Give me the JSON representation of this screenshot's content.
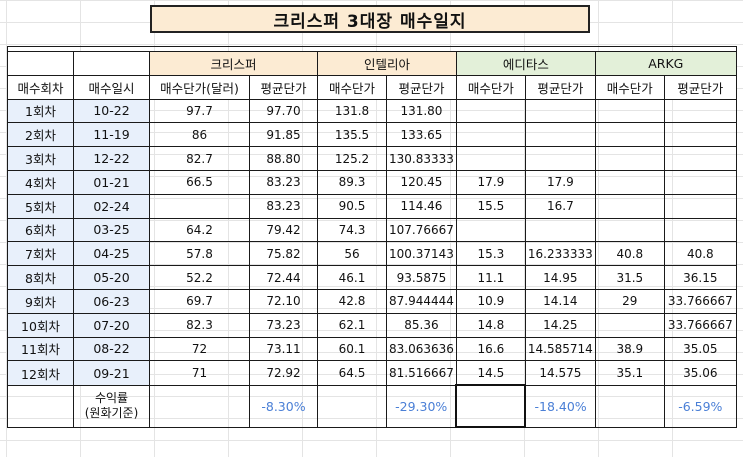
{
  "title": "크리스퍼 3대장 매수일지",
  "groups": [
    "크리스퍼",
    "인텔리아",
    "에디타스",
    "ARKG"
  ],
  "columns": [
    "매수회차",
    "매수일시",
    "매수단가(달러)",
    "평균단가",
    "매수단가",
    "평균단가",
    "매수단가",
    "평균단가",
    "매수단가",
    "평균단가"
  ],
  "rows": [
    [
      "1회차",
      "10-22",
      "97.7",
      "97.70",
      "131.8",
      "131.80",
      "",
      "",
      "",
      ""
    ],
    [
      "2회차",
      "11-19",
      "86",
      "91.85",
      "135.5",
      "133.65",
      "",
      "",
      "",
      ""
    ],
    [
      "3회차",
      "12-22",
      "82.7",
      "88.80",
      "125.2",
      "130.83333",
      "",
      "",
      "",
      ""
    ],
    [
      "4회차",
      "01-21",
      "66.5",
      "83.23",
      "89.3",
      "120.45",
      "17.9",
      "17.9",
      "",
      ""
    ],
    [
      "5회차",
      "02-24",
      "",
      "83.23",
      "90.5",
      "114.46",
      "15.5",
      "16.7",
      "",
      ""
    ],
    [
      "6회차",
      "03-25",
      "64.2",
      "79.42",
      "74.3",
      "107.76667",
      "",
      "",
      "",
      ""
    ],
    [
      "7회차",
      "04-25",
      "57.8",
      "75.82",
      "56",
      "100.37143",
      "15.3",
      "16.233333",
      "40.8",
      "40.8"
    ],
    [
      "8회차",
      "05-20",
      "52.2",
      "72.44",
      "46.1",
      "93.5875",
      "11.1",
      "14.95",
      "31.5",
      "36.15"
    ],
    [
      "9회차",
      "06-23",
      "69.7",
      "72.10",
      "42.8",
      "87.944444",
      "10.9",
      "14.14",
      "29",
      "33.766667"
    ],
    [
      "10회차",
      "07-20",
      "82.3",
      "73.23",
      "62.1",
      "85.36",
      "14.8",
      "14.25",
      "",
      "33.766667"
    ],
    [
      "11회차",
      "08-22",
      "72",
      "73.11",
      "60.1",
      "83.063636",
      "16.6",
      "14.585714",
      "38.9",
      "35.05"
    ],
    [
      "12회차",
      "09-21",
      "71",
      "72.92",
      "64.5",
      "81.516667",
      "14.5",
      "14.575",
      "35.1",
      "35.06"
    ]
  ],
  "returns_label_line1": "수익률",
  "returns_label_line2": "(원화기준)",
  "returns": [
    "-8.30%",
    "-29.30%",
    "-18.40%",
    "-6.59%"
  ],
  "colors": {
    "group_header_orange": "#fcebd3",
    "group_header_green": "#e3f0d9",
    "first_cols_blue": "#e8f0fb",
    "percent_text": "#4a7fd6"
  }
}
